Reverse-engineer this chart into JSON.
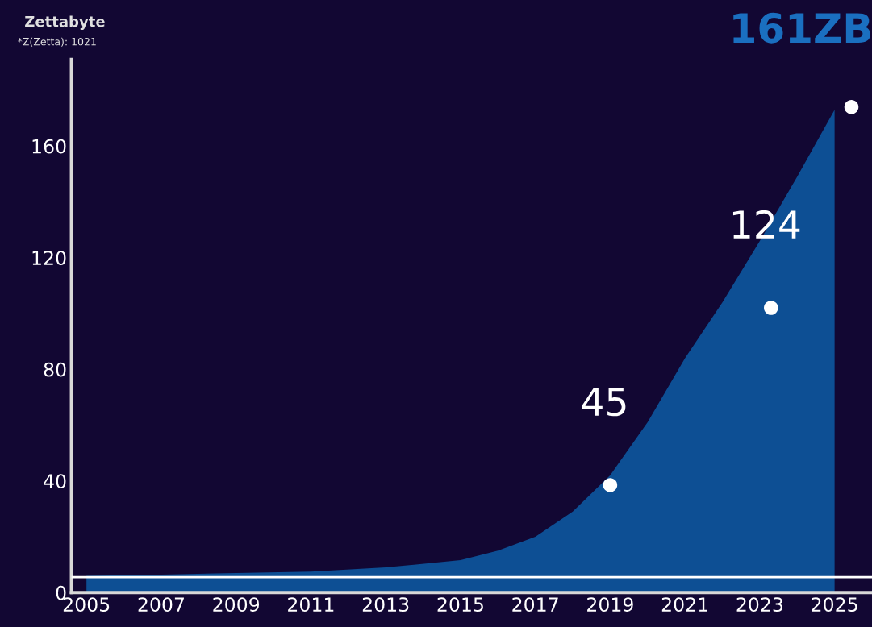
{
  "chart_data": {
    "type": "area",
    "title": "Zettabyte",
    "subtitle": "*Z(Zetta): 1021",
    "x": [
      2005,
      2007,
      2009,
      2011,
      2013,
      2015,
      2016,
      2017,
      2018,
      2019,
      2020,
      2021,
      2022,
      2023,
      2024,
      2025
    ],
    "series": [
      {
        "color": "#0d4f94",
        "values": [
          6,
          6.4,
          7,
          7.5,
          9,
          11.6,
          15,
          20,
          29,
          42,
          61,
          84,
          104,
          126,
          149,
          173
        ]
      },
      {
        "type": "scatter",
        "color": "#ffffff",
        "x": [
          2019,
          2023.3,
          2025.45
        ],
        "values": [
          38.5,
          102,
          174
        ]
      }
    ],
    "xlim": [
      2004.6,
      2026
    ],
    "ylim": [
      0,
      191
    ],
    "xticks": [
      2005,
      2007,
      2009,
      2011,
      2013,
      2015,
      2017,
      2019,
      2021,
      2023,
      2025
    ],
    "yticks": [
      0,
      40,
      80,
      120,
      160
    ],
    "ref_lines": [
      {
        "axis": "y",
        "value": 5.5,
        "color": "#ffffff"
      }
    ],
    "annotations": [
      "45",
      "124",
      "161ZB"
    ],
    "grid": false
  }
}
